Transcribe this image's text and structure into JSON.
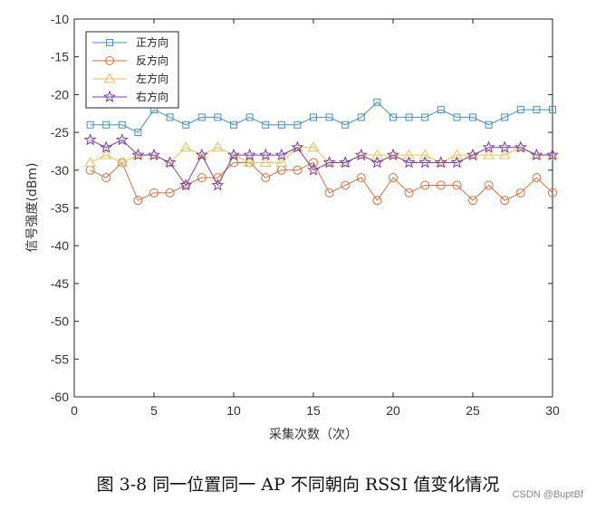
{
  "chart_data": {
    "type": "line",
    "xlabel": "采集次数（次）",
    "ylabel": "信号强度(dBm)",
    "xlim": [
      0,
      30
    ],
    "ylim": [
      -60,
      -10
    ],
    "xticks": [
      0,
      5,
      10,
      15,
      20,
      25,
      30
    ],
    "yticks": [
      -10,
      -15,
      -20,
      -25,
      -30,
      -35,
      -40,
      -45,
      -50,
      -55,
      -60
    ],
    "grid": false,
    "legend_position": "top-left",
    "x": [
      1,
      2,
      3,
      4,
      5,
      6,
      7,
      8,
      9,
      10,
      11,
      12,
      13,
      14,
      15,
      16,
      17,
      18,
      19,
      20,
      21,
      22,
      23,
      24,
      25,
      26,
      27,
      28,
      29,
      30
    ],
    "series": [
      {
        "name": "正方向",
        "color": "#4A90C2",
        "marker": "square",
        "values": [
          -24,
          -24,
          -24,
          -25,
          -22,
          -23,
          -24,
          -23,
          -23,
          -24,
          -23,
          -24,
          -24,
          -24,
          -23,
          -23,
          -24,
          -23,
          -21,
          -23,
          -23,
          -23,
          -22,
          -23,
          -23,
          -24,
          -23,
          -22,
          -22,
          -22
        ]
      },
      {
        "name": "反方向",
        "color": "#D2703E",
        "marker": "circle",
        "values": [
          -30,
          -31,
          -29,
          -34,
          -33,
          -33,
          -32,
          -31,
          -31,
          -29,
          -29,
          -31,
          -30,
          -30,
          -29,
          -33,
          -32,
          -31,
          -34,
          -31,
          -33,
          -32,
          -32,
          -32,
          -34,
          -32,
          -34,
          -33,
          -31,
          -33
        ]
      },
      {
        "name": "左方向",
        "color": "#E6C35A",
        "marker": "triangle",
        "values": [
          -29,
          -28,
          -29,
          -28,
          -28,
          -29,
          -27,
          -28,
          -27,
          -28,
          -29,
          -29,
          -29,
          -27,
          -27,
          -29,
          -29,
          -28,
          -28,
          -28,
          -28,
          -28,
          -29,
          -28,
          -28,
          -28,
          -28,
          -27,
          -28,
          -28
        ]
      },
      {
        "name": "右方向",
        "color": "#7B3FA0",
        "marker": "star",
        "values": [
          -26,
          -27,
          -26,
          -28,
          -28,
          -29,
          -32,
          -28,
          -32,
          -28,
          -28,
          -28,
          -28,
          -27,
          -30,
          -29,
          -29,
          -28,
          -29,
          -28,
          -29,
          -29,
          -29,
          -29,
          -28,
          -27,
          -27,
          -27,
          -28,
          -28
        ]
      }
    ]
  },
  "caption": "图 3-8 同一位置同一 AP 不同朝向 RSSI 值变化情况",
  "watermark": "CSDN @BuptBf"
}
